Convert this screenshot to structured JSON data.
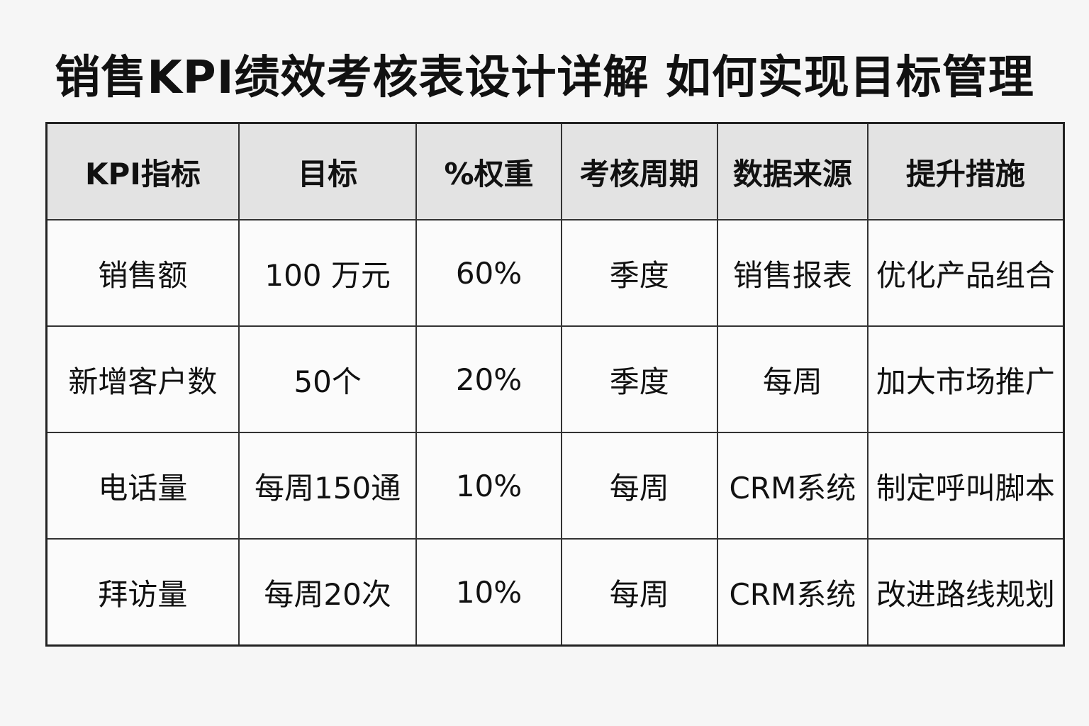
{
  "title": "销售KPI绩效考核表设计详解 如何实现目标管理",
  "table": {
    "headers": [
      "KPI指标",
      "目标",
      "%权重",
      "考核周期",
      "数据来源",
      "提升措施"
    ],
    "rows": [
      [
        "销售额",
        "100 万元",
        "60%",
        "季度",
        "销售报表",
        "优化产品组合"
      ],
      [
        "新增客户数",
        "50个",
        "20%",
        "季度",
        "每周",
        "加大市场推广"
      ],
      [
        "电话量",
        "每周150通",
        "10%",
        "每周",
        "CRM系统",
        "制定呼叫脚本"
      ],
      [
        "拜访量",
        "每周20次",
        "10%",
        "每周",
        "CRM系统",
        "改进路线规划"
      ]
    ]
  }
}
